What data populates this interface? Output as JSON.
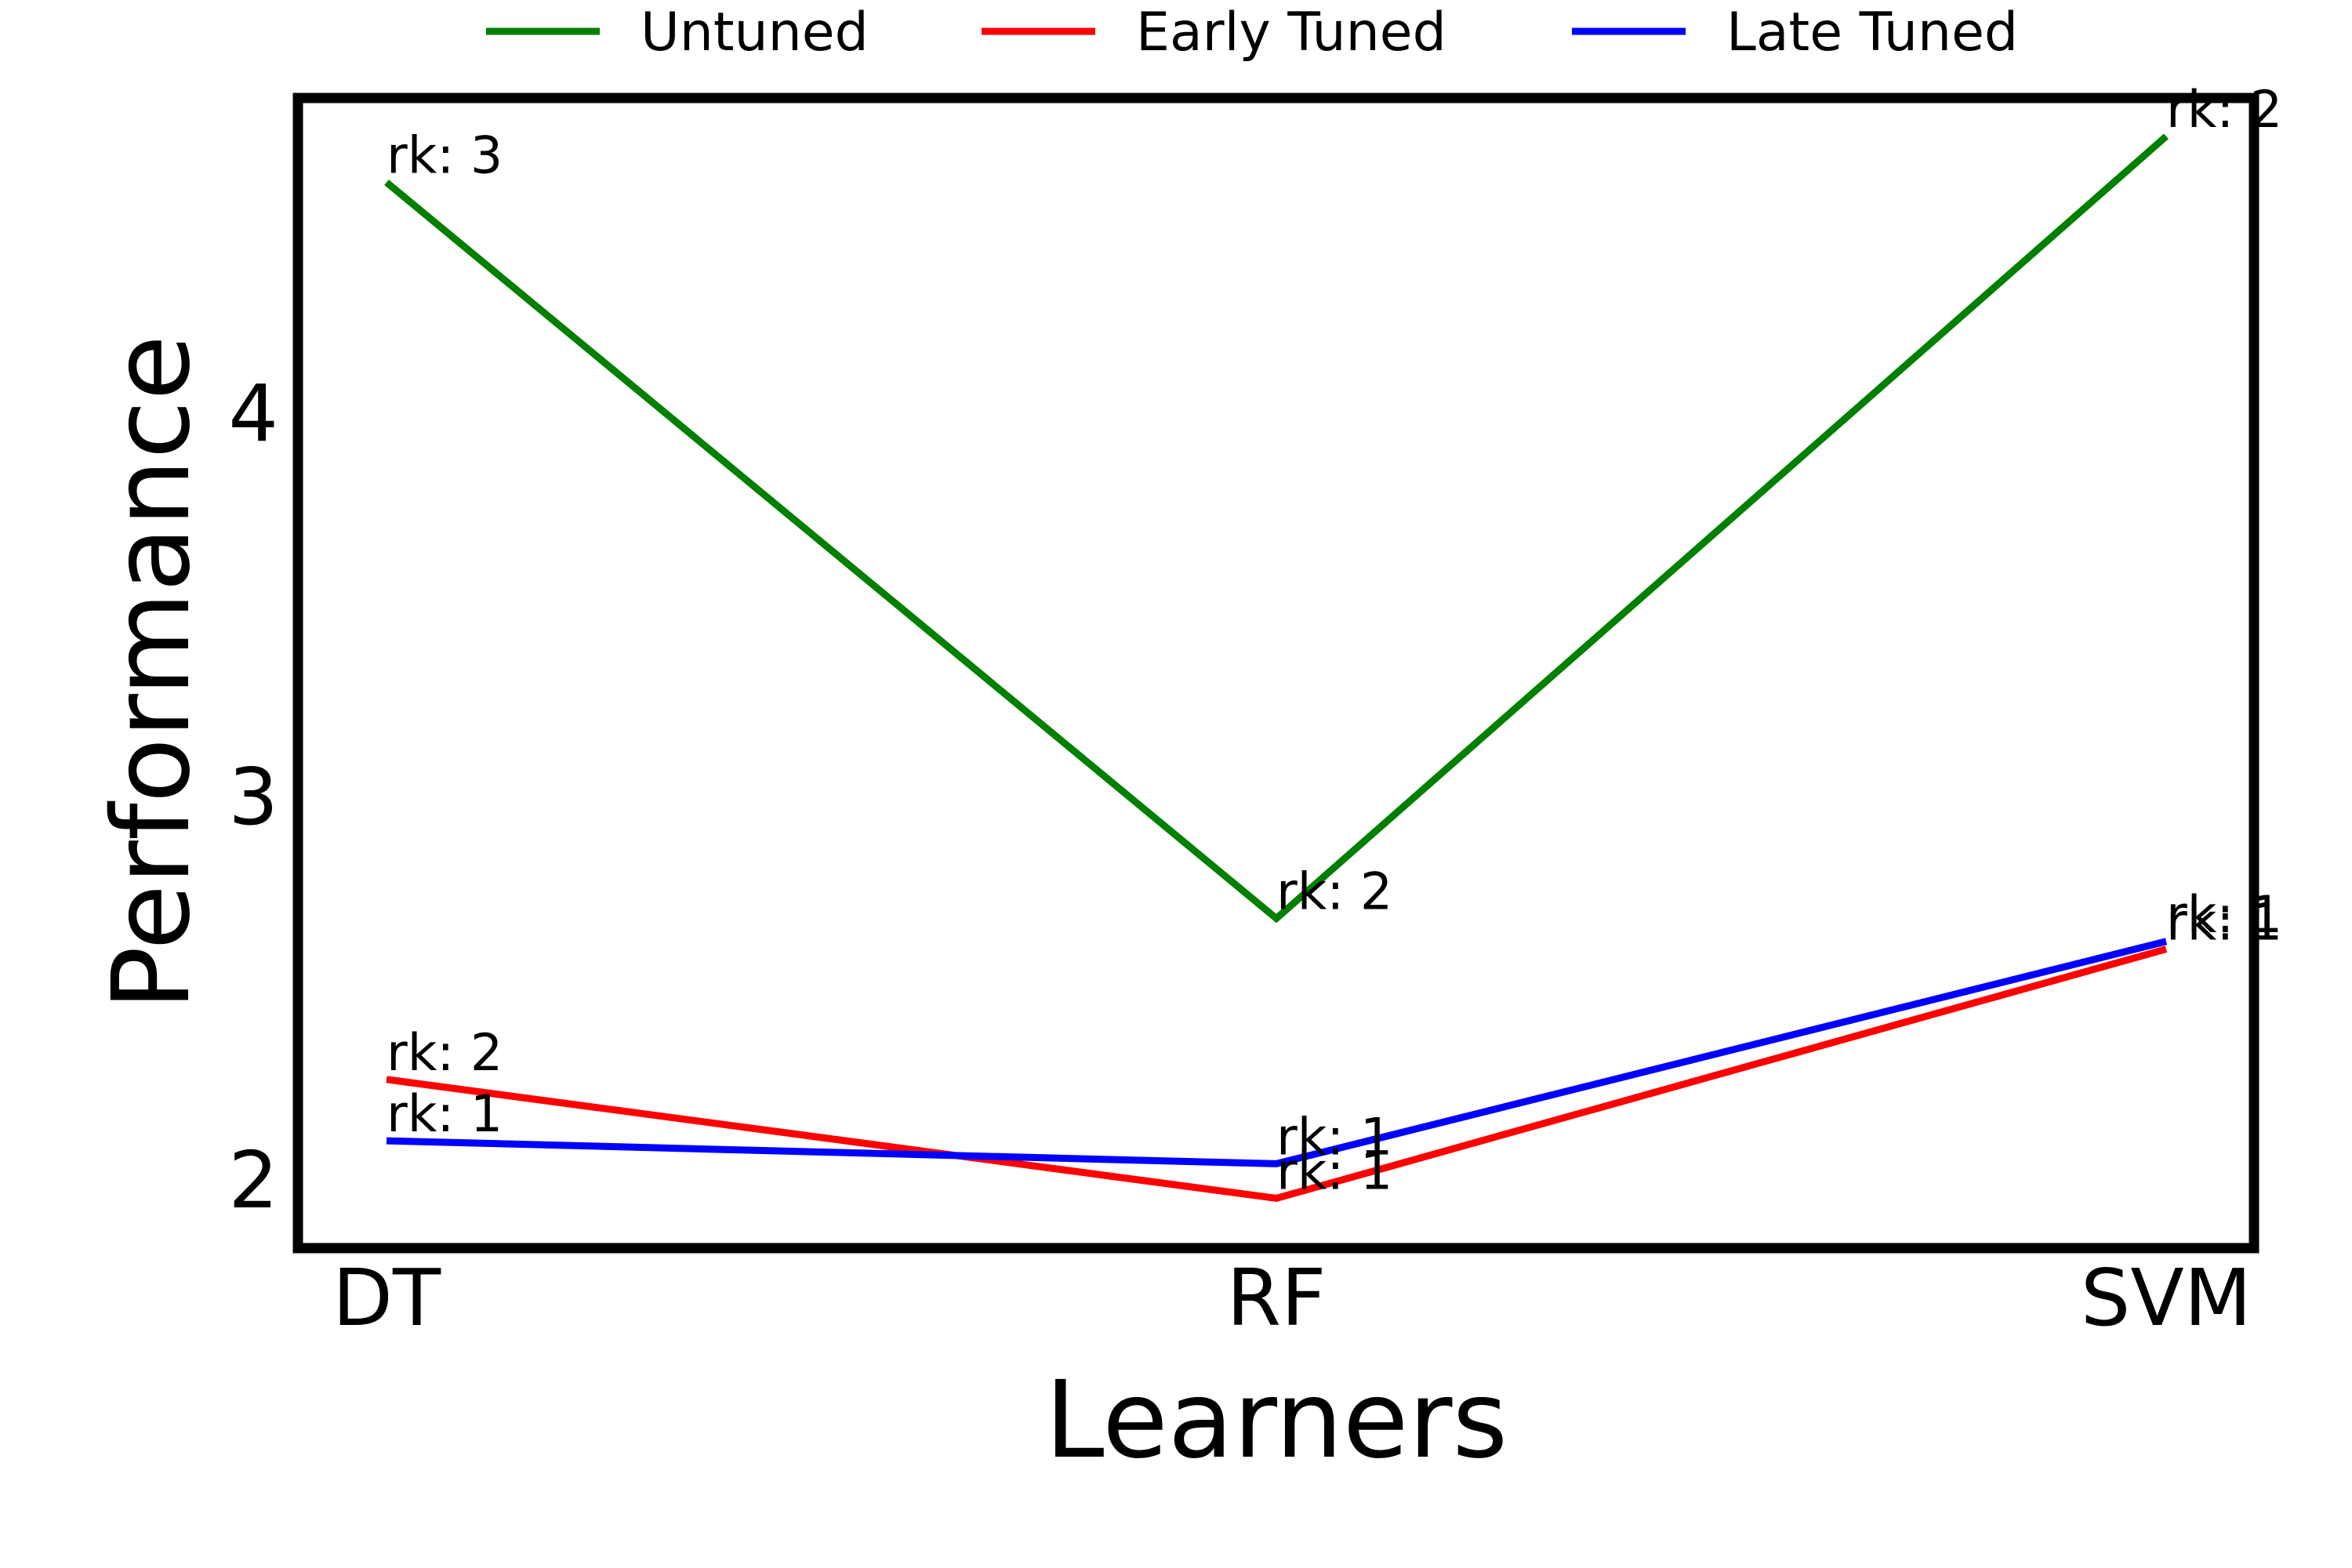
{
  "chart_data": {
    "type": "line",
    "title": "",
    "xlabel": "Learners",
    "ylabel": "Performance",
    "categories": [
      "DT",
      "RF",
      "SVM"
    ],
    "y_ticks": [
      2,
      3,
      4
    ],
    "ylim": [
      1.82,
      4.82
    ],
    "grid": false,
    "legend_position": "top",
    "series": [
      {
        "name": "Untuned",
        "color": "#008000",
        "values": [
          4.6,
          2.68,
          4.72
        ],
        "ranks": [
          "rk: 3",
          "rk: 2",
          "rk: 2"
        ]
      },
      {
        "name": "Early Tuned",
        "color": "#ff0000",
        "values": [
          2.26,
          1.95,
          2.6
        ],
        "ranks": [
          "rk: 2",
          "rk: 1",
          "rk: 1"
        ]
      },
      {
        "name": "Late Tuned",
        "color": "#0000ff",
        "values": [
          2.1,
          2.04,
          2.62
        ],
        "ranks": [
          "rk: 1",
          "rk: 1",
          "rk: 1"
        ]
      }
    ]
  }
}
